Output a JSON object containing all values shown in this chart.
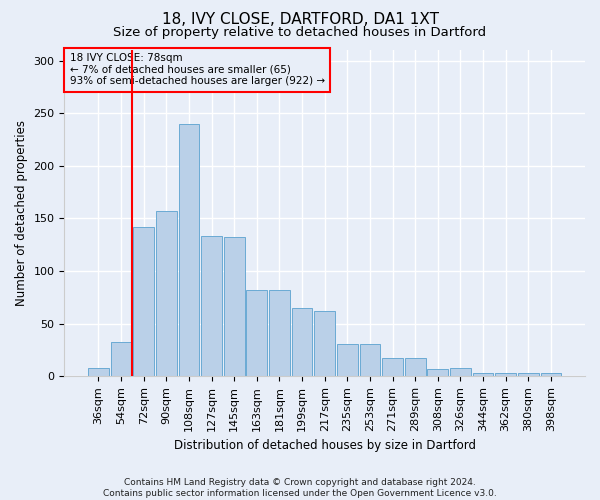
{
  "title_line1": "18, IVY CLOSE, DARTFORD, DA1 1XT",
  "title_line2": "Size of property relative to detached houses in Dartford",
  "xlabel": "Distribution of detached houses by size in Dartford",
  "ylabel": "Number of detached properties",
  "footnote": "Contains HM Land Registry data © Crown copyright and database right 2024.\nContains public sector information licensed under the Open Government Licence v3.0.",
  "bar_labels": [
    "36sqm",
    "54sqm",
    "72sqm",
    "90sqm",
    "108sqm",
    "127sqm",
    "145sqm",
    "163sqm",
    "181sqm",
    "199sqm",
    "217sqm",
    "235sqm",
    "253sqm",
    "271sqm",
    "289sqm",
    "308sqm",
    "326sqm",
    "344sqm",
    "362sqm",
    "380sqm",
    "398sqm"
  ],
  "bar_values": [
    8,
    33,
    142,
    157,
    240,
    133,
    132,
    82,
    82,
    65,
    62,
    31,
    31,
    17,
    17,
    7,
    8,
    3,
    3,
    3,
    3
  ],
  "bar_color": "#bad0e8",
  "bar_edge_color": "#6aaad4",
  "vline_x": 1.5,
  "vline_color": "red",
  "annotation_text": "18 IVY CLOSE: 78sqm\n← 7% of detached houses are smaller (65)\n93% of semi-detached houses are larger (922) →",
  "ylim": [
    0,
    310
  ],
  "yticks": [
    0,
    50,
    100,
    150,
    200,
    250,
    300
  ],
  "background_color": "#e8eef8",
  "grid_color": "#ffffff",
  "title_fontsize": 11,
  "subtitle_fontsize": 9.5,
  "axis_label_fontsize": 8.5,
  "tick_fontsize": 8,
  "footnote_fontsize": 6.5,
  "annotation_fontsize": 7.5
}
